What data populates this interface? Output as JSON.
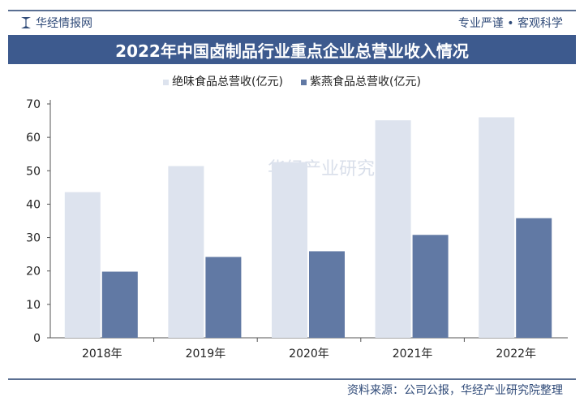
{
  "header": {
    "brand": "华经情报网",
    "slogan": "专业严谨 • 客观科学",
    "logo_icon": "huajing-logo-icon"
  },
  "footer": {
    "source": "资料来源：公司公报，华经产业研究院整理"
  },
  "watermark": "华经产业研究院",
  "chart_data": {
    "type": "bar",
    "title": "2022年中国卤制品行业重点企业总营业收入情况",
    "categories": [
      "2018年",
      "2019年",
      "2020年",
      "2021年",
      "2022年"
    ],
    "series": [
      {
        "name": "绝味食品总营收(亿元)",
        "values": [
          43.6,
          51.4,
          52.6,
          65.1,
          66.0
        ],
        "color": "#dde3ee"
      },
      {
        "name": "紫燕食品总营收(亿元)",
        "values": [
          19.8,
          24.2,
          25.9,
          30.8,
          35.8
        ],
        "color": "#6179a4"
      }
    ],
    "ylim": [
      0,
      70
    ],
    "yticks": [
      "0",
      "10",
      "20",
      "30",
      "40",
      "50",
      "60",
      "70"
    ],
    "grid": false,
    "legend": "top"
  }
}
